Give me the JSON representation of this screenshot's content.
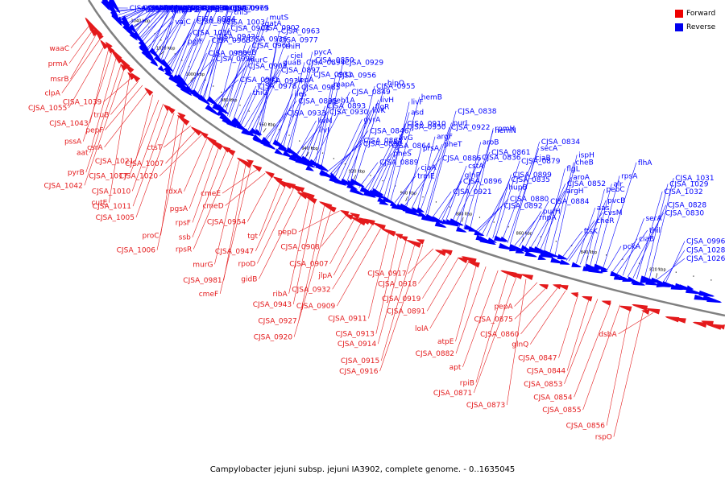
{
  "caption": "Campylobacter jejuni subsp. jejuni IA3902, complete genome. - 0..1635045",
  "colors": {
    "forward": "#e41a1c",
    "reverse": "#0000ff",
    "backbone": "#808080"
  },
  "legend": [
    {
      "label": "Forward",
      "color": "#ee0000"
    },
    {
      "label": "Reverse",
      "color": "#0000ee"
    }
  ],
  "ticks": [
    "1040 kbp",
    "1020 kbp",
    "1000 kbp",
    "980 kbp",
    "960 kbp",
    "940 kbp",
    "920 kbp",
    "900 kbp",
    "880 kbp",
    "860 kbp",
    "840 kbp",
    "820 kbp"
  ],
  "reverse_labels": [
    "CJSA_1053",
    "secD",
    "CJSA_1025",
    "npdA",
    "CJSA_0952",
    "pglK",
    "leuS",
    "thiD",
    "CJSA_0992",
    "CJSA_0949",
    "pglH",
    "metK",
    "secF",
    "folC",
    "thiE",
    "dapE",
    "CJSA_0948",
    "pglB",
    "vajC",
    "mfd",
    "hemD",
    "CJSA_1000",
    "CJSA_0986",
    "CJSA_0971",
    "CJSA_0946",
    "pglJ",
    "pglC",
    "pglF",
    "CJSA_1016",
    "CJSA_0999",
    "CJSA_0984",
    "CJSA_0969",
    "CJSA_0945",
    "pglD",
    "CJSA_1057",
    "lon",
    "CJSA_0998",
    "CJSA_0983",
    "CJSA_0968",
    "CJSA_0942",
    "CJSA_0904",
    "CJSA_1003",
    "thiS",
    "CJSA_0979",
    "CJSA_0965",
    "CJSA_0941",
    "CJSA_0903",
    "murC",
    "moeB",
    "CJSA_0964",
    "CJSA_0936",
    "CJSA_0902",
    "gatA",
    "mutS",
    "thiG",
    "CJSA_0978",
    "CJSA_0934",
    "CJSA_0897",
    "guaB",
    "cjeI",
    "thiH",
    "CJSA_0977",
    "CJSA_0963",
    "CJSA_0933",
    "CJSA_0895",
    "iles",
    "CJSA_0985",
    "lepA",
    "CJSA_0931",
    "CJSA_0894",
    "CJSA_0850",
    "pycA",
    "livJ",
    "livM",
    "CJSA_0930",
    "CJSA_0893",
    "peb1A",
    "CJSA_0849",
    "mapA",
    "CJSA_0956",
    "CJSA_0929",
    "CJSA_0890",
    "CJSA_0865",
    "CJSA_0846",
    "gyrA",
    "livK",
    "flgR",
    "livH",
    "CJSA_0955",
    "hipO",
    "CJSA_0889",
    "pheS",
    "CJSA_0864",
    "livG",
    "CJSA_0950",
    "CJSA_0910",
    "asd",
    "livF",
    "hemB",
    "trmE",
    "cjaA",
    "CJSA_0886",
    "prsA",
    "pheT",
    "argF",
    "CJSA_0922",
    "purL",
    "CJSA_0838",
    "CJSA_0921",
    "CJSA_0896",
    "glnP",
    "cstA",
    "CJSA_0836",
    "CJSA_0861",
    "aroB",
    "hemN",
    "rpmH",
    "CJSA_0892",
    "CJSA_0880",
    "hupB",
    "CJSA_0835",
    "CJSA_0899",
    "CJSA_0879",
    "cjaB",
    "secA",
    "CJSA_0834",
    "rnpA",
    "purH",
    "CJSA_0884",
    "argH",
    "CJSA_0852",
    "aroA",
    "flgL",
    "cheB",
    "ispH",
    "ftsK",
    "cheR",
    "cvsM",
    "aas",
    "pvcB",
    "pebC",
    "alr",
    "rpsA",
    "flhA",
    "pckA",
    "ciaB",
    "thil",
    "serA",
    "CJSA_0830",
    "CJSA_0828",
    "CJSA_1032",
    "CJSA_1029",
    "CJSA_1031",
    "CJSA_1026",
    "CJSA_1028",
    "CJSA_0996"
  ],
  "forward_labels": [
    "waaC",
    "prmA",
    "msrB",
    "clpA",
    "CJSA_1055",
    "CJSA_1043",
    "pssA",
    "aat",
    "pyrB",
    "CJSA_1042",
    "cutE",
    "CJSA_1039",
    "truB",
    "pepF",
    "csrA",
    "CJSA_1021",
    "CJSA_1017",
    "CJSA_1010",
    "CJSA_1011",
    "CJSA_1005",
    "proC",
    "CJSA_1006",
    "ctsT",
    "CJSA_1007",
    "CJSA_1020",
    "rdxA",
    "pgsA",
    "rpsF",
    "ssb",
    "rpsR",
    "murG",
    "CJSA_0981",
    "cmeF",
    "cmeE",
    "cmeD",
    "CJSA_0954",
    "tgt",
    "CJSA_0947",
    "rpoD",
    "gidB",
    "ribA",
    "CJSA_0943",
    "CJSA_0927",
    "CJSA_0920",
    "pepD",
    "CJSA_0908",
    "CJSA_0907",
    "jlpA",
    "CJSA_0932",
    "CJSA_0909",
    "CJSA_0911",
    "CJSA_0913",
    "CJSA_0914",
    "CJSA_0915",
    "CJSA_0916",
    "CJSA_0917",
    "CJSA_0918",
    "CJSA_0919",
    "CJSA_0891",
    "lolA",
    "atpE",
    "CJSA_0882",
    "apt",
    "rpiB",
    "CJSA_0871",
    "CJSA_0873",
    "pepA",
    "CJSA_0875",
    "CJSA_0860",
    "glnQ",
    "CJSA_0847",
    "CJSA_0844",
    "CJSA_0853",
    "CJSA_0854",
    "CJSA_0855",
    "CJSA_0856",
    "rspO",
    "dsbA"
  ]
}
